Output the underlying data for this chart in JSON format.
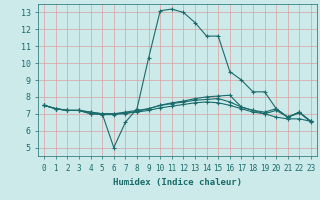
{
  "title": "",
  "xlabel": "Humidex (Indice chaleur)",
  "background_color": "#cceaea",
  "grid_color": "#ddaaaa",
  "line_color": "#1a6b6b",
  "xlim": [
    -0.5,
    23.5
  ],
  "ylim": [
    4.5,
    13.5
  ],
  "xticks": [
    0,
    1,
    2,
    3,
    4,
    5,
    6,
    7,
    8,
    9,
    10,
    11,
    12,
    13,
    14,
    15,
    16,
    17,
    18,
    19,
    20,
    21,
    22,
    23
  ],
  "yticks": [
    5,
    6,
    7,
    8,
    9,
    10,
    11,
    12,
    13
  ],
  "series": [
    {
      "x": [
        0,
        1,
        2,
        3,
        4,
        5,
        6,
        7,
        8,
        9,
        10,
        11,
        12,
        13,
        14,
        15,
        16,
        17,
        18,
        19,
        20,
        21,
        22,
        23
      ],
      "y": [
        7.5,
        7.3,
        7.2,
        7.2,
        7.1,
        7.0,
        5.0,
        6.5,
        7.3,
        10.3,
        13.1,
        13.2,
        13.0,
        12.4,
        11.6,
        11.6,
        9.5,
        9.0,
        8.3,
        8.3,
        7.3,
        6.8,
        7.1,
        6.5
      ]
    },
    {
      "x": [
        0,
        1,
        2,
        3,
        4,
        5,
        6,
        7,
        8,
        9,
        10,
        11,
        12,
        13,
        14,
        15,
        16,
        17,
        18,
        19,
        20,
        21,
        22,
        23
      ],
      "y": [
        7.5,
        7.3,
        7.2,
        7.2,
        7.1,
        7.0,
        7.0,
        7.0,
        7.15,
        7.3,
        7.5,
        7.65,
        7.75,
        7.9,
        8.0,
        8.05,
        8.1,
        7.4,
        7.2,
        7.0,
        6.8,
        6.7,
        6.7,
        6.55
      ]
    },
    {
      "x": [
        0,
        1,
        2,
        3,
        4,
        5,
        6,
        7,
        8,
        9,
        10,
        11,
        12,
        13,
        14,
        15,
        16,
        17,
        18,
        19,
        20,
        21,
        22,
        23
      ],
      "y": [
        7.5,
        7.3,
        7.2,
        7.2,
        7.0,
        7.0,
        7.0,
        7.1,
        7.2,
        7.3,
        7.5,
        7.6,
        7.7,
        7.8,
        7.85,
        7.9,
        7.7,
        7.4,
        7.2,
        7.1,
        7.3,
        6.8,
        7.1,
        6.55
      ]
    },
    {
      "x": [
        0,
        1,
        2,
        3,
        4,
        5,
        6,
        7,
        8,
        9,
        10,
        11,
        12,
        13,
        14,
        15,
        16,
        17,
        18,
        19,
        20,
        21,
        22,
        23
      ],
      "y": [
        7.5,
        7.3,
        7.2,
        7.2,
        7.0,
        6.95,
        6.95,
        7.05,
        7.1,
        7.2,
        7.35,
        7.45,
        7.55,
        7.65,
        7.7,
        7.65,
        7.5,
        7.3,
        7.1,
        7.0,
        7.2,
        6.8,
        7.05,
        6.55
      ]
    }
  ]
}
